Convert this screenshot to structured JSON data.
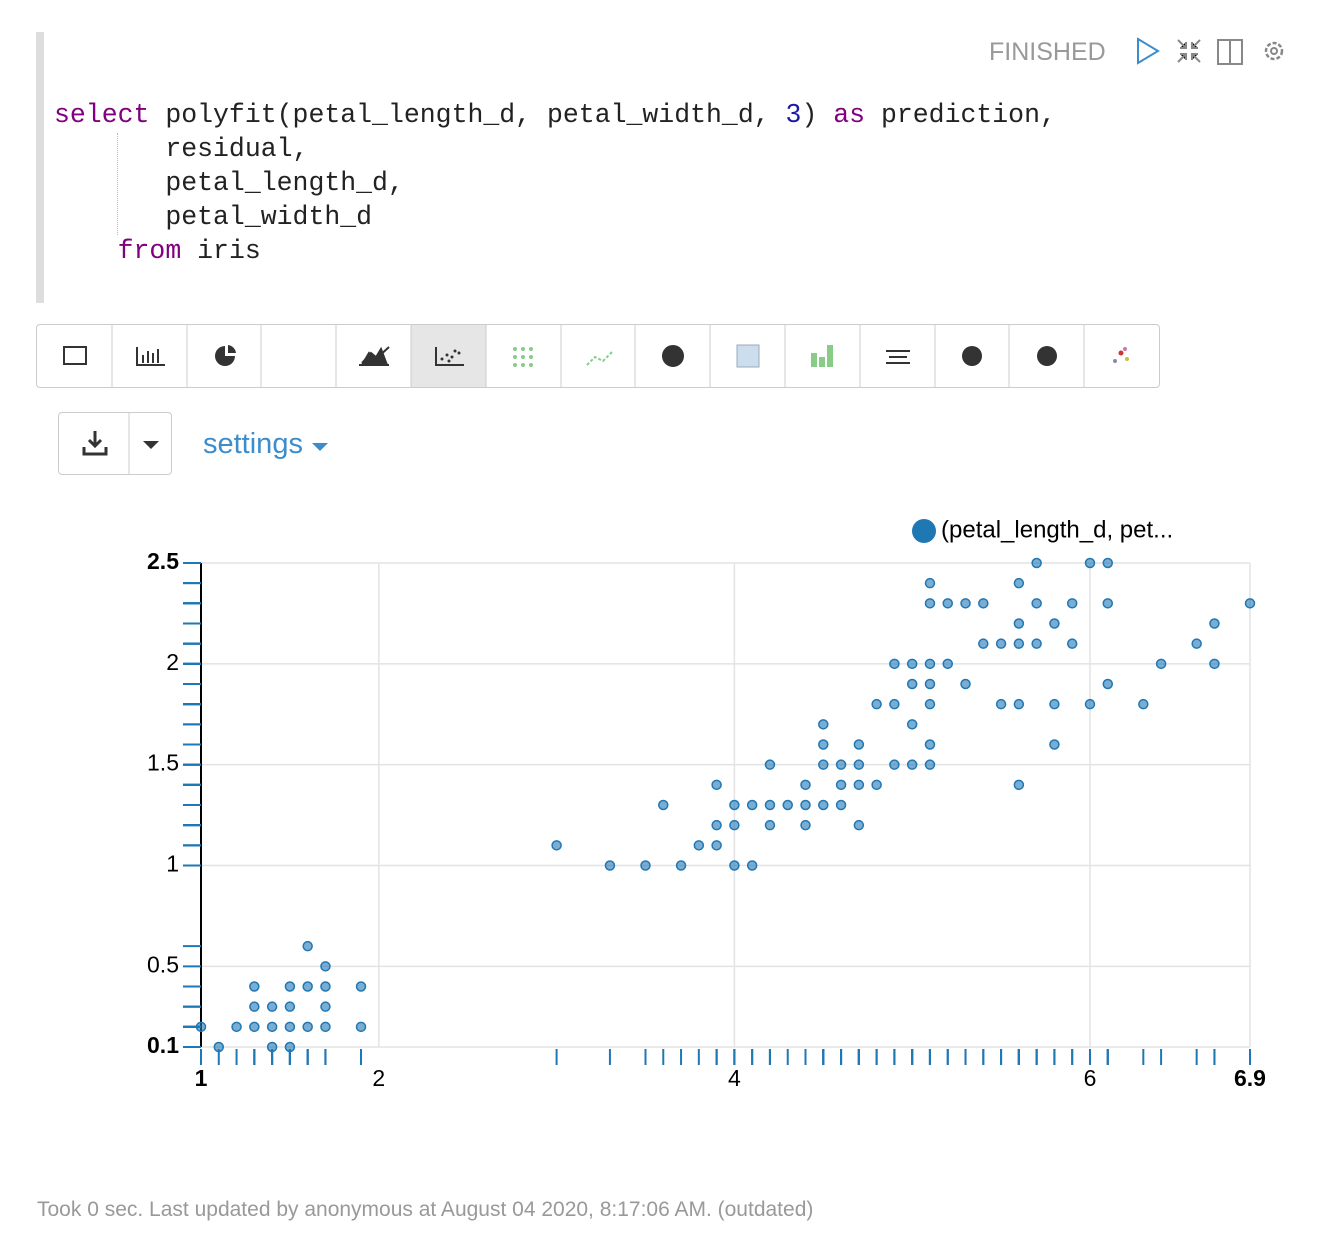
{
  "paragraph": {
    "status": "FINISHED",
    "code": [
      [
        {
          "text": "select",
          "color": "#800080"
        },
        {
          "text": " polyfit(petal_length_d, petal_width_d, ",
          "color": "#222222"
        },
        {
          "text": "3",
          "color": "#1a1aa6"
        },
        {
          "text": ") ",
          "color": "#222222"
        },
        {
          "text": "as",
          "color": "#800080"
        },
        {
          "text": " prediction,",
          "color": "#222222"
        }
      ],
      [
        {
          "text": "       residual,",
          "color": "#222222"
        }
      ],
      [
        {
          "text": "       petal_length_d,",
          "color": "#222222"
        }
      ],
      [
        {
          "text": "       petal_width_d",
          "color": "#222222"
        }
      ],
      [
        {
          "text": "    ",
          "color": "#222222"
        },
        {
          "text": "from",
          "color": "#800080"
        },
        {
          "text": " iris",
          "color": "#222222"
        }
      ]
    ],
    "settings": "settings",
    "footer": "Took 0 sec. Last updated by anonymous at August 04 2020, 8:17:06 AM. (outdated)"
  },
  "chart_data": {
    "type": "scatter",
    "x": [
      1,
      1.1,
      1.2,
      1.3,
      1.3,
      1.3,
      1.4,
      1.4,
      1.4,
      1.5,
      1.5,
      1.5,
      1.5,
      1.6,
      1.6,
      1.6,
      1.7,
      1.7,
      1.7,
      1.7,
      1.9,
      1.9,
      3,
      3.3,
      3.5,
      3.6,
      3.7,
      3.8,
      3.9,
      3.9,
      3.9,
      4,
      4,
      4,
      4.1,
      4.1,
      4.2,
      4.2,
      4.2,
      4.3,
      4.4,
      4.4,
      4.4,
      4.5,
      4.5,
      4.5,
      4.5,
      4.6,
      4.6,
      4.6,
      4.7,
      4.7,
      4.7,
      4.7,
      4.8,
      4.8,
      4.9,
      4.9,
      4.9,
      5,
      5,
      5,
      5,
      5.1,
      5.1,
      5.1,
      5.1,
      5.1,
      5.1,
      5.1,
      5.2,
      5.2,
      5.3,
      5.3,
      5.4,
      5.4,
      5.5,
      5.5,
      5.6,
      5.6,
      5.6,
      5.6,
      5.6,
      5.7,
      5.7,
      5.7,
      5.8,
      5.8,
      5.8,
      5.9,
      5.9,
      6,
      6,
      6.1,
      6.1,
      6.1,
      6.3,
      6.4,
      6.6,
      6.7,
      6.7,
      6.9
    ],
    "series": [
      {
        "name": "(petal_length_d, pet...",
        "color": "#1f77b4",
        "values": [
          0.2,
          0.1,
          0.2,
          0.2,
          0.3,
          0.4,
          0.1,
          0.2,
          0.3,
          0.1,
          0.2,
          0.3,
          0.4,
          0.2,
          0.4,
          0.6,
          0.2,
          0.3,
          0.4,
          0.5,
          0.2,
          0.4,
          1.1,
          1,
          1,
          1.3,
          1,
          1.1,
          1.1,
          1.2,
          1.4,
          1,
          1.2,
          1.3,
          1,
          1.3,
          1.2,
          1.3,
          1.5,
          1.3,
          1.2,
          1.3,
          1.4,
          1.3,
          1.5,
          1.6,
          1.7,
          1.3,
          1.4,
          1.5,
          1.2,
          1.4,
          1.5,
          1.6,
          1.4,
          1.8,
          1.5,
          1.8,
          2,
          1.5,
          1.7,
          1.9,
          2,
          1.5,
          1.6,
          1.8,
          1.9,
          2,
          2.3,
          2.4,
          2,
          2.3,
          1.9,
          2.3,
          2.1,
          2.3,
          1.8,
          2.1,
          1.4,
          1.8,
          2.1,
          2.2,
          2.4,
          2.1,
          2.3,
          2.5,
          1.6,
          1.8,
          2.2,
          2.1,
          2.3,
          1.8,
          2.5,
          1.9,
          2.3,
          2.5,
          1.8,
          2,
          2.1,
          2,
          2.2,
          2.3
        ]
      }
    ],
    "xlim": [
      1,
      6.9
    ],
    "xticks": [
      1,
      2,
      4,
      6,
      6.9
    ],
    "ylim": [
      0.1,
      2.5
    ],
    "yticks": [
      0.1,
      0.5,
      1,
      1.5,
      2,
      2.5
    ],
    "grid": true
  }
}
